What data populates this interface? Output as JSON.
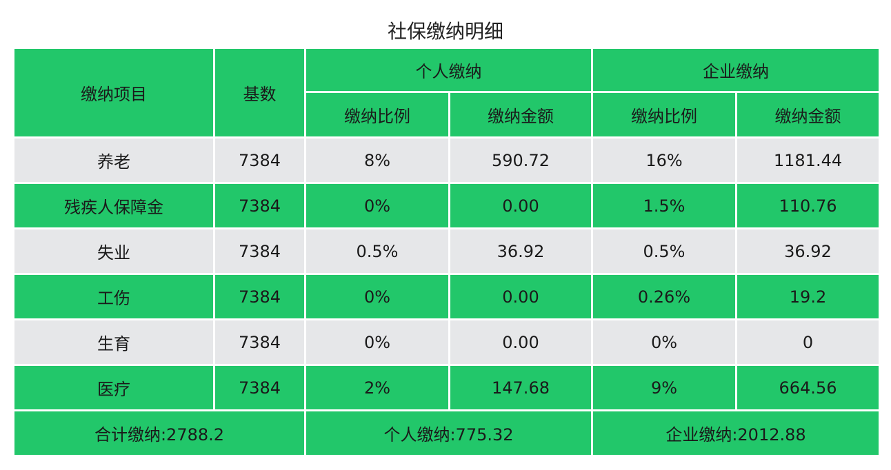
{
  "title": "社保缴纳明细",
  "header": {
    "item": "缴纳项目",
    "base": "基数",
    "personal": "个人缴纳",
    "company": "企业缴纳",
    "rate": "缴纳比例",
    "amount": "缴纳金额"
  },
  "rows": [
    {
      "item": "养老",
      "base": "7384",
      "p_rate": "8%",
      "p_amount": "590.72",
      "c_rate": "16%",
      "c_amount": "1181.44"
    },
    {
      "item": "残疾人保障金",
      "base": "7384",
      "p_rate": "0%",
      "p_amount": "0.00",
      "c_rate": "1.5%",
      "c_amount": "110.76"
    },
    {
      "item": "失业",
      "base": "7384",
      "p_rate": "0.5%",
      "p_amount": "36.92",
      "c_rate": "0.5%",
      "c_amount": "36.92"
    },
    {
      "item": "工伤",
      "base": "7384",
      "p_rate": "0%",
      "p_amount": "0.00",
      "c_rate": "0.26%",
      "c_amount": "19.2"
    },
    {
      "item": "生育",
      "base": "7384",
      "p_rate": "0%",
      "p_amount": "0.00",
      "c_rate": "0%",
      "c_amount": "0"
    },
    {
      "item": "医疗",
      "base": "7384",
      "p_rate": "2%",
      "p_amount": "147.68",
      "c_rate": "9%",
      "c_amount": "664.56"
    }
  ],
  "totals": {
    "total": "合计缴纳:2788.2",
    "personal": "个人缴纳:775.32",
    "company": "企业缴纳:2012.88"
  },
  "colors": {
    "green": "#22c76a",
    "gray": "#e6e7e9",
    "border": "#ffffff"
  }
}
